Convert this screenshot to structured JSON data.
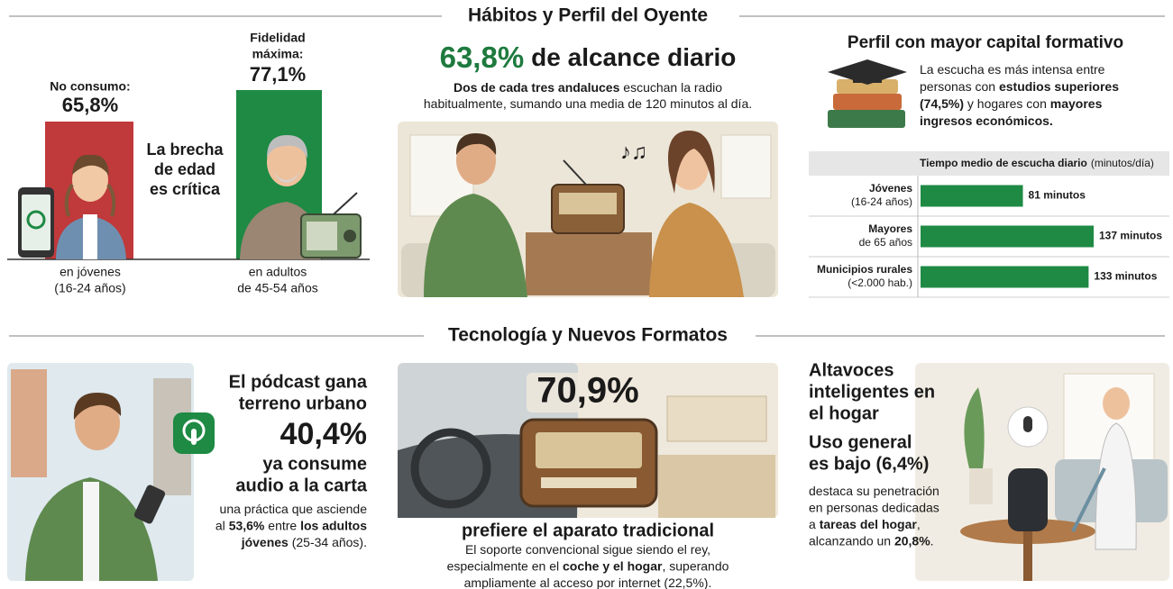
{
  "sections": [
    {
      "title": "Hábitos y Perfil del Oyente"
    },
    {
      "title": "Tecnología y Nuevos Formatos"
    }
  ],
  "age_gap": {
    "youth": {
      "label_lines": [
        "No consumo:"
      ],
      "value": "65,8%",
      "caption": [
        "en jóvenes",
        "(16-24 años)"
      ]
    },
    "adults": {
      "label_lines": [
        "Fidelidad",
        "máxima:"
      ],
      "value": "77,1%",
      "caption": [
        "en adultos",
        "de 45-54 años"
      ]
    },
    "message": [
      "La brecha",
      "de edad",
      "es crítica"
    ]
  },
  "reach": {
    "value": "63,8%",
    "title": "de alcance diario",
    "description": [
      [
        {
          "text": "Dos de cada tres andaluces",
          "bold": true
        },
        {
          "text": " escuchan la radio",
          "bold": false
        }
      ],
      [
        {
          "text": "habitualmente, sumando una media de 120 minutos al día.",
          "bold": false
        }
      ]
    ]
  },
  "profile": {
    "title": "Perfil con mayor capital formativo",
    "description": [
      [
        {
          "text": "La escucha es más intensa entre",
          "bold": false
        }
      ],
      [
        {
          "text": "personas con ",
          "bold": false
        },
        {
          "text": "estudios superiores",
          "bold": true
        }
      ],
      [
        {
          "text": "(74,5%)",
          "bold": true
        },
        {
          "text": " y hogares con ",
          "bold": false
        },
        {
          "text": "mayores",
          "bold": true
        }
      ],
      [
        {
          "text": "ingresos económicos.",
          "bold": true
        }
      ]
    ],
    "chart": {
      "type": "bar",
      "title": "Tiempo medio de escucha diario",
      "unit": "(minutos/día)",
      "categories": [
        [
          "Jóvenes",
          "(16-24 años)"
        ],
        [
          "Mayores",
          "de 65 años"
        ],
        [
          "Municipios rurales",
          "(<2.000 hab.)"
        ]
      ],
      "values": [
        81,
        137,
        133
      ],
      "value_labels": [
        "81 minutos",
        "137 minutos",
        "133 minutos"
      ],
      "color": "#1e8a44"
    }
  },
  "podcast": {
    "heading": [
      "El pódcast gana",
      "terreno urbano"
    ],
    "value": "40,4%",
    "subheading": [
      "ya consume",
      "audio a la carta"
    ],
    "description": [
      [
        {
          "text": "una práctica que asciende",
          "bold": false
        }
      ],
      [
        {
          "text": "al ",
          "bold": false
        },
        {
          "text": "53,6%",
          "bold": true
        },
        {
          "text": " entre ",
          "bold": false
        },
        {
          "text": "los adultos",
          "bold": true
        }
      ],
      [
        {
          "text": "jóvenes",
          "bold": true
        },
        {
          "text": " (25-34 años).",
          "bold": false
        }
      ]
    ]
  },
  "traditional": {
    "value": "70,9%",
    "heading": "prefiere el aparato tradicional",
    "description": [
      [
        {
          "text": "El soporte convencional sigue siendo el rey,",
          "bold": false
        }
      ],
      [
        {
          "text": "especialmente en el ",
          "bold": false
        },
        {
          "text": "coche y el hogar",
          "bold": true
        },
        {
          "text": ", superando",
          "bold": false
        }
      ],
      [
        {
          "text": "ampliamente al acceso por internet (22,5%).",
          "bold": false
        }
      ]
    ]
  },
  "smart_speakers": {
    "heading": [
      "Altavoces",
      "inteligentes en",
      "el hogar"
    ],
    "subheading": [
      "Uso general",
      "es bajo (6,4%)"
    ],
    "description": [
      [
        {
          "text": "destaca su penetración",
          "bold": false
        }
      ],
      [
        {
          "text": "en personas dedicadas",
          "bold": false
        }
      ],
      [
        {
          "text": "a ",
          "bold": false
        },
        {
          "text": "tareas del hogar",
          "bold": true
        },
        {
          "text": ",",
          "bold": false
        }
      ],
      [
        {
          "text": "alcanzando un ",
          "bold": false
        },
        {
          "text": "20,8%",
          "bold": true
        },
        {
          "text": ".",
          "bold": false
        }
      ]
    ]
  }
}
